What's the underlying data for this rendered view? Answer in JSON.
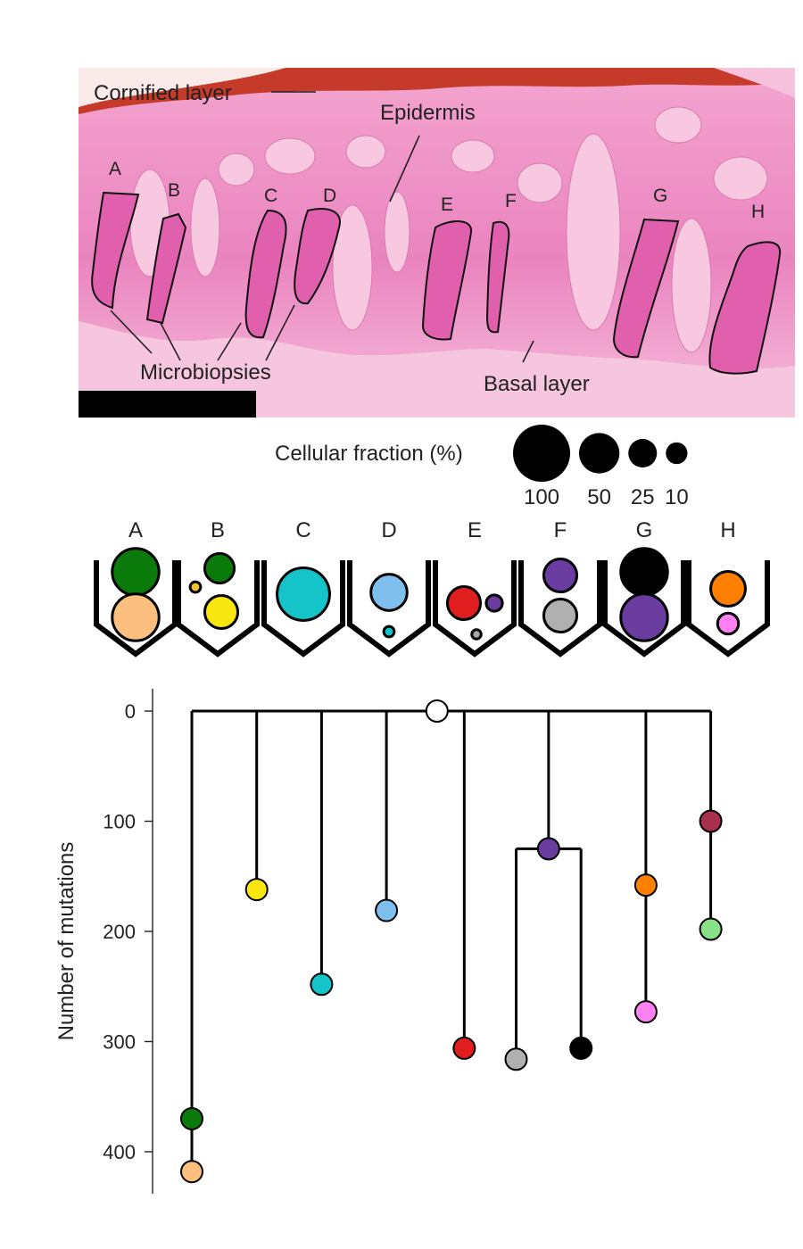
{
  "histology": {
    "labels": {
      "cornified": "Cornified layer",
      "epidermis": "Epidermis",
      "microbiopsies": "Microbiopsies",
      "basal": "Basal layer"
    },
    "biopsy_letters": [
      "A",
      "B",
      "C",
      "D",
      "E",
      "F",
      "G",
      "H"
    ]
  },
  "legend": {
    "title": "Cellular fraction (%)",
    "sizes": [
      {
        "label": "100",
        "fraction": 100
      },
      {
        "label": "50",
        "fraction": 50
      },
      {
        "label": "25",
        "fraction": 25
      },
      {
        "label": "10",
        "fraction": 10
      }
    ]
  },
  "biopsies": [
    {
      "label": "A",
      "clones": [
        {
          "color": "#0a7a0a",
          "fraction": 100
        },
        {
          "color": "#fdbf7d",
          "fraction": 100
        }
      ]
    },
    {
      "label": "B",
      "clones": [
        {
          "color": "#0a7a0a",
          "fraction": 40
        },
        {
          "color": "#f2c12e",
          "fraction": 5
        },
        {
          "color": "#f8e60f",
          "fraction": 50
        }
      ]
    },
    {
      "label": "C",
      "clones": [
        {
          "color": "#14c4c8",
          "fraction": 100
        }
      ]
    },
    {
      "label": "D",
      "clones": [
        {
          "color": "#7fbfee",
          "fraction": 60
        },
        {
          "color": "#14c4c8",
          "fraction": 5
        }
      ]
    },
    {
      "label": "E",
      "clones": [
        {
          "color": "#e01e1e",
          "fraction": 50
        },
        {
          "color": "#6a3c9f",
          "fraction": 12
        },
        {
          "color": "#a8a8a8",
          "fraction": 4
        }
      ]
    },
    {
      "label": "F",
      "clones": [
        {
          "color": "#6a3c9f",
          "fraction": 50
        },
        {
          "color": "#b0b0b0",
          "fraction": 50
        }
      ]
    },
    {
      "label": "G",
      "clones": [
        {
          "color": "#000000",
          "fraction": 100
        },
        {
          "color": "#6a3c9f",
          "fraction": 100
        }
      ]
    },
    {
      "label": "H",
      "clones": [
        {
          "color": "#ff8000",
          "fraction": 55
        },
        {
          "color": "#ff80f2",
          "fraction": 20
        }
      ]
    }
  ],
  "tree": {
    "ylabel": "Number of mutations",
    "ylim": [
      0,
      430
    ],
    "yticks": [
      0,
      100,
      200,
      300,
      400
    ],
    "root": {
      "x_lane": 4.0,
      "y": 0,
      "color": "#ffffff"
    },
    "lanes": [
      {
        "lane": 0,
        "nodes": [
          {
            "y": 370,
            "color": "#0a7a0a"
          },
          {
            "y": 418,
            "color": "#fdbf7d"
          }
        ]
      },
      {
        "lane": 1,
        "nodes": [
          {
            "y": 162,
            "color": "#f8e60f"
          }
        ]
      },
      {
        "lane": 2,
        "nodes": [
          {
            "y": 248,
            "color": "#14c4c8"
          }
        ]
      },
      {
        "lane": 3,
        "nodes": [
          {
            "y": 181,
            "color": "#7fbfee"
          }
        ]
      },
      {
        "lane": 4.2,
        "nodes": [
          {
            "y": 306,
            "color": "#e01e1e"
          }
        ]
      },
      {
        "lane": 5.5,
        "nodes": [
          {
            "y": 125,
            "color": "#6a3c9f"
          }
        ],
        "children": [
          {
            "lane": 5.0,
            "nodes": [
              {
                "y": 316,
                "color": "#b0b0b0"
              }
            ]
          },
          {
            "lane": 6.0,
            "nodes": [
              {
                "y": 306,
                "color": "#000000"
              }
            ]
          }
        ]
      },
      {
        "lane": 7.0,
        "nodes": [
          {
            "y": 158,
            "color": "#ff8000"
          },
          {
            "y": 273,
            "color": "#ff80f2"
          }
        ]
      },
      {
        "lane": 8.0,
        "nodes": [
          {
            "y": 100,
            "color": "#a8304d"
          },
          {
            "y": 198,
            "color": "#88e088"
          }
        ]
      }
    ]
  },
  "colors": {
    "tissue_base": "#f090c4",
    "tissue_dark": "#e26fb2",
    "dermis": "#f3b6d6",
    "cornified_edge": "#c4331b",
    "scale_bar": "#000000"
  }
}
